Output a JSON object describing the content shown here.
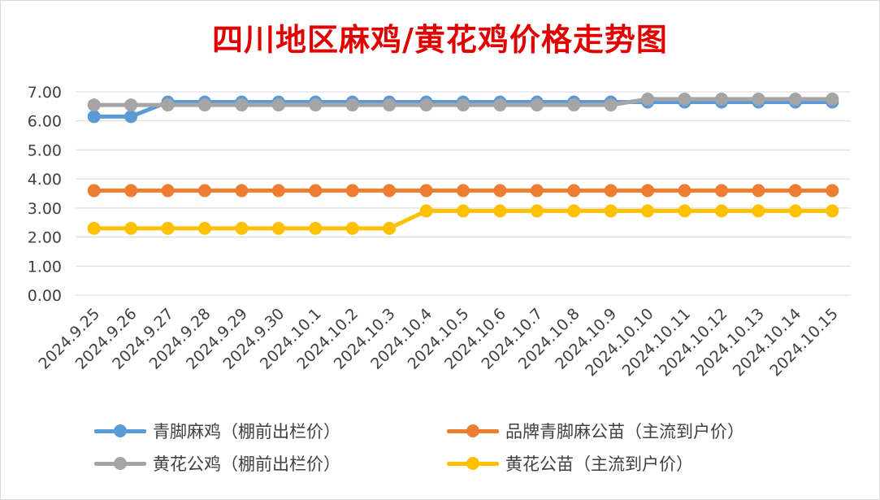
{
  "chart_data": {
    "type": "line",
    "title": "四川地区麻鸡/黄花鸡价格走势图",
    "categories": [
      "2024.9.25",
      "2024.9.26",
      "2024.9.27",
      "2024.9.28",
      "2024.9.29",
      "2024.9.30",
      "2024.10.1",
      "2024.10.2",
      "2024.10.3",
      "2024.10.4",
      "2024.10.5",
      "2024.10.6",
      "2024.10.7",
      "2024.10.8",
      "2024.10.9",
      "2024.10.10",
      "2024.10.11",
      "2024.10.12",
      "2024.10.13",
      "2024.10.14",
      "2024.10.15"
    ],
    "ylim": [
      0,
      7
    ],
    "yticks": [
      "0.00",
      "1.00",
      "2.00",
      "3.00",
      "4.00",
      "5.00",
      "6.00",
      "7.00"
    ],
    "grid": true,
    "legend_position": "bottom",
    "series": [
      {
        "name": "青脚麻鸡（棚前出栏价）",
        "color": "#5b9bd5",
        "values": [
          6.15,
          6.15,
          6.65,
          6.65,
          6.65,
          6.65,
          6.65,
          6.65,
          6.65,
          6.65,
          6.65,
          6.65,
          6.65,
          6.65,
          6.65,
          6.65,
          6.65,
          6.65,
          6.65,
          6.65,
          6.65
        ]
      },
      {
        "name": "品牌青脚麻公苗（主流到户价）",
        "color": "#ed7d31",
        "values": [
          3.6,
          3.6,
          3.6,
          3.6,
          3.6,
          3.6,
          3.6,
          3.6,
          3.6,
          3.6,
          3.6,
          3.6,
          3.6,
          3.6,
          3.6,
          3.6,
          3.6,
          3.6,
          3.6,
          3.6,
          3.6
        ]
      },
      {
        "name": "黄花公鸡（棚前出栏价）",
        "color": "#a5a5a5",
        "values": [
          6.55,
          6.55,
          6.55,
          6.55,
          6.55,
          6.55,
          6.55,
          6.55,
          6.55,
          6.55,
          6.55,
          6.55,
          6.55,
          6.55,
          6.55,
          6.75,
          6.75,
          6.75,
          6.75,
          6.75,
          6.75
        ]
      },
      {
        "name": "黄花公苗（主流到户价）",
        "color": "#ffc000",
        "values": [
          2.3,
          2.3,
          2.3,
          2.3,
          2.3,
          2.3,
          2.3,
          2.3,
          2.3,
          2.9,
          2.9,
          2.9,
          2.9,
          2.9,
          2.9,
          2.9,
          2.9,
          2.9,
          2.9,
          2.9,
          2.9
        ]
      }
    ]
  }
}
